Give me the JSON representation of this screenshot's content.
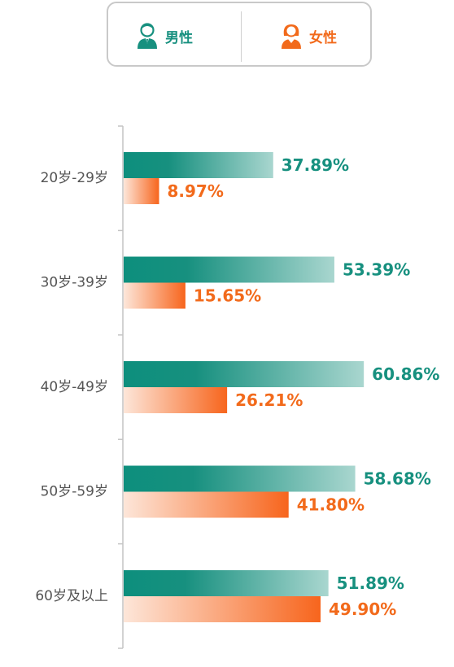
{
  "legend": {
    "male": {
      "label": "男性",
      "icon": "male-user-icon",
      "color": "#17907f"
    },
    "female": {
      "label": "女性",
      "icon": "female-user-icon",
      "color": "#f26a1b"
    }
  },
  "chart_data": {
    "type": "bar",
    "orientation": "horizontal",
    "title": "",
    "xlabel": "",
    "ylabel": "",
    "grid": false,
    "legend_position": "top",
    "xlim": [
      0,
      65
    ],
    "categories": [
      "20岁-29岁",
      "30岁-39岁",
      "40岁-49岁",
      "50岁-59岁",
      "60岁及以上"
    ],
    "series": [
      {
        "name": "男性",
        "color": "#17907f",
        "values": [
          37.89,
          53.39,
          60.86,
          58.68,
          51.89
        ],
        "labels": [
          "37.89%",
          "53.39%",
          "60.86%",
          "58.68%",
          "51.89%"
        ]
      },
      {
        "name": "女性",
        "color": "#f26a1b",
        "values": [
          8.97,
          15.65,
          26.21,
          41.8,
          49.9
        ],
        "labels": [
          "8.97%",
          "15.65%",
          "26.21%",
          "41.80%",
          "49.90%"
        ]
      }
    ]
  }
}
